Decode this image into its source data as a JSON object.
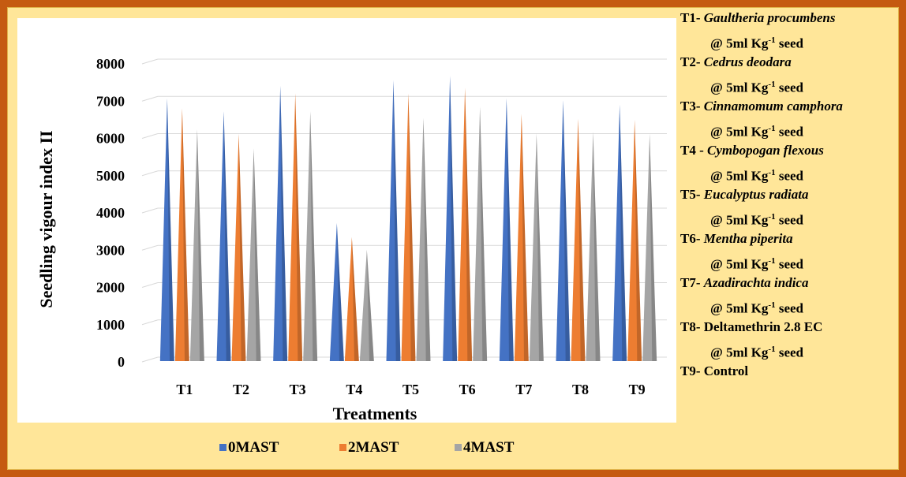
{
  "chart_data": {
    "type": "bar",
    "categories": [
      "T1",
      "T2",
      "T3",
      "T4",
      "T5",
      "T6",
      "T7",
      "T8",
      "T9"
    ],
    "series": [
      {
        "name": "0MAST",
        "color": "#4472c4",
        "values": [
          6950,
          6600,
          7280,
          3600,
          7430,
          7550,
          6950,
          6900,
          6780
        ]
      },
      {
        "name": "2MAST",
        "color": "#ed7d31",
        "values": [
          6680,
          6000,
          7080,
          3220,
          7080,
          7230,
          6530,
          6400,
          6370
        ]
      },
      {
        "name": "4MAST",
        "color": "#a5a5a5",
        "values": [
          6120,
          5600,
          6600,
          2880,
          6420,
          6720,
          6000,
          6050,
          6000
        ]
      }
    ],
    "xlabel": "Treatments",
    "ylabel": "Seedling vigour index  II",
    "yticks": [
      "0",
      "1000",
      "2000",
      "3000",
      "4000",
      "5000",
      "6000",
      "7000",
      "8000"
    ],
    "ylim": [
      0,
      8000
    ],
    "grid": true,
    "legend": "bottom"
  },
  "treatment_notes": [
    {
      "code": "T1- ",
      "name": "Gaultheria procumbens",
      "dose": "@ 5ml Kg",
      "sup": "-1",
      "unit": " seed"
    },
    {
      "code": "T2- ",
      "name": "Cedrus deodara",
      "dose": "@ 5ml Kg",
      "sup": "-1",
      "unit": " seed"
    },
    {
      "code": "T3- ",
      "name": "Cinnamomum camphora",
      "dose": "@ 5ml Kg",
      "sup": "-1",
      "unit": " seed"
    },
    {
      "code": "T4 - ",
      "name": "Cymbopogan flexous",
      "dose": "@ 5ml Kg",
      "sup": "-1",
      "unit": " seed"
    },
    {
      "code": "T5- ",
      "name": "Eucalyptus radiata",
      "dose": "@ 5ml Kg",
      "sup": "-1",
      "unit": " seed"
    },
    {
      "code": "T6- ",
      "name": "Mentha piperita",
      "dose": "@ 5ml Kg",
      "sup": "-1",
      "unit": " seed"
    },
    {
      "code": "T7- ",
      "name": "Azadirachta indica",
      "dose": "@ 5ml Kg",
      "sup": "-1",
      "unit": " seed"
    },
    {
      "code": "T8- Deltamethrin 2.8 EC",
      "name": "",
      "dose": "@ 5ml Kg",
      "sup": "-1",
      "unit": " seed"
    },
    {
      "code": "T9- Control",
      "name": "",
      "dose": "",
      "sup": "",
      "unit": ""
    }
  ]
}
